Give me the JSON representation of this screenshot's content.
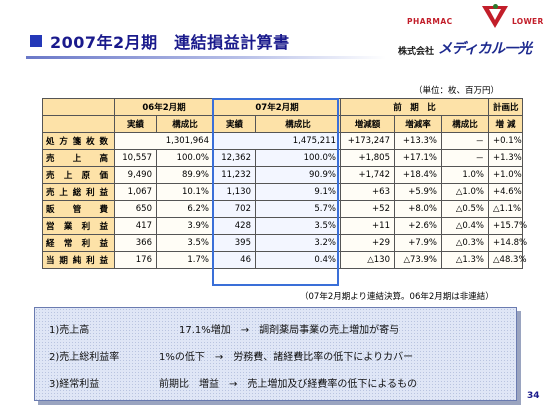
{
  "header": {
    "title": "2007年2月期　連結損益計算書",
    "logo_pharmac": "PHARMAC",
    "logo_flower": "LOWER",
    "company_prefix": "株式会社",
    "company_name": "メディカル一光"
  },
  "unit_note": "（単位：枚、百万円）",
  "table": {
    "group_headers": [
      "06年2月期",
      "07年2月期",
      "前　期　比",
      "計画比"
    ],
    "sub_headers": [
      "実績",
      "構成比",
      "実績",
      "構成比",
      "増減額",
      "増減率",
      "構成比",
      "増 減"
    ],
    "rows": [
      {
        "label": "処方箋枚数",
        "cells": [
          "",
          "1,301,964",
          "",
          "1,475,211",
          "+173,247",
          "+13.3%",
          "－",
          "+0.1%"
        ]
      },
      {
        "label": "売上高",
        "cells": [
          "10,557",
          "100.0%",
          "12,362",
          "100.0%",
          "+1,805",
          "+17.1%",
          "－",
          "+1.3%"
        ]
      },
      {
        "label": "売上原価",
        "cells": [
          "9,490",
          "89.9%",
          "11,232",
          "90.9%",
          "+1,742",
          "+18.4%",
          "1.0%",
          "+1.0%"
        ]
      },
      {
        "label": "売上総利益",
        "cells": [
          "1,067",
          "10.1%",
          "1,130",
          "9.1%",
          "+63",
          "+5.9%",
          "△1.0%",
          "+4.6%"
        ]
      },
      {
        "label": "販管費",
        "cells": [
          "650",
          "6.2%",
          "702",
          "5.7%",
          "+52",
          "+8.0%",
          "△0.5%",
          "△1.1%"
        ]
      },
      {
        "label": "営業利益",
        "cells": [
          "417",
          "3.9%",
          "428",
          "3.5%",
          "+11",
          "+2.6%",
          "△0.4%",
          "+15.7%"
        ]
      },
      {
        "label": "経常利益",
        "cells": [
          "366",
          "3.5%",
          "395",
          "3.2%",
          "+29",
          "+7.9%",
          "△0.3%",
          "+14.8%"
        ]
      },
      {
        "label": "当期純利益",
        "cells": [
          "176",
          "1.7%",
          "46",
          "0.4%",
          "△130",
          "△73.9%",
          "△1.3%",
          "△48.3%"
        ]
      }
    ]
  },
  "footnote": "（07年2月期より連結決算。06年2月期は非連結）",
  "summary": [
    {
      "item": "1)売上高",
      "detail": "17.1%増加",
      "arrow": "→",
      "reason": "調剤薬局事業の売上増加が寄与"
    },
    {
      "item": "2)売上総利益率",
      "detail": "1%の低下",
      "arrow": "→",
      "reason": "労務費、諸経費比率の低下によりカバー"
    },
    {
      "item": "3)経常利益",
      "detail": "前期比　増益",
      "arrow": "→",
      "reason": "売上増加及び経費率の低下によるもの"
    }
  ],
  "page_number": "34",
  "colors": {
    "title": "#1a1a8c",
    "header_fill": "#fde2a8",
    "current_period_frame": "#3a6fd8",
    "logo_red": "#c21e2a",
    "summary_fill": "#dfe6f6"
  }
}
